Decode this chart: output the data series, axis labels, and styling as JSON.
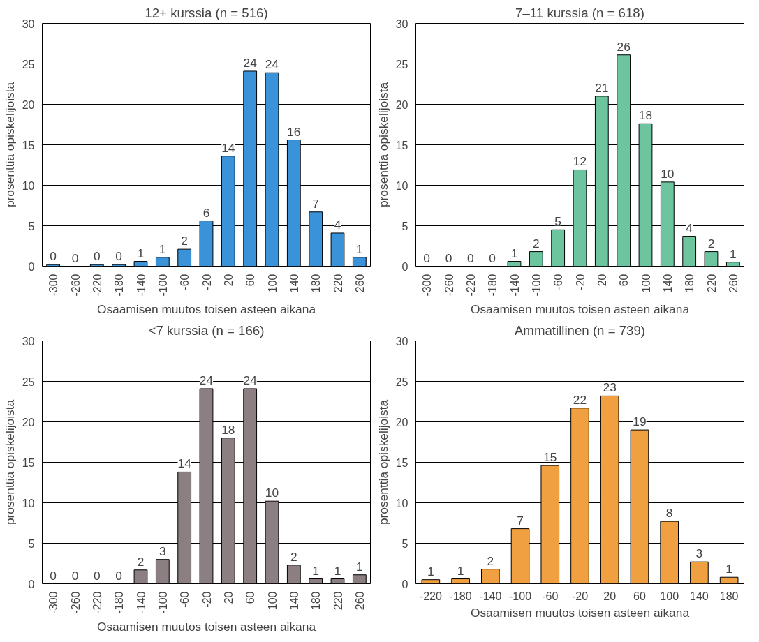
{
  "chart_data": [
    {
      "type": "bar",
      "title": "12+ kurssia (n = 516)",
      "xlabel": "Osaamisen muutos toisen asteen aikana",
      "ylabel": "prosenttia opiskelijoista",
      "categories": [
        "-300",
        "-260",
        "-220",
        "-180",
        "-140",
        "-100",
        "-60",
        "-20",
        "20",
        "60",
        "100",
        "140",
        "180",
        "220",
        "260"
      ],
      "values": [
        0.2,
        0,
        0.2,
        0.2,
        0.6,
        1.1,
        2.1,
        5.6,
        13.6,
        24.1,
        23.9,
        15.6,
        6.7,
        4.1,
        1.1
      ],
      "value_labels": [
        "0",
        "0",
        "0",
        "0",
        "1",
        "1",
        "2",
        "6",
        "14",
        "24",
        "24",
        "16",
        "7",
        "4",
        "1"
      ],
      "color": "#3a93d8",
      "ylim": [
        0,
        30
      ],
      "yticks": [
        0,
        5,
        10,
        15,
        20,
        25,
        30
      ],
      "grid": "y"
    },
    {
      "type": "bar",
      "title": "7–11 kurssia (n = 618)",
      "xlabel": "Osaamisen muutos toisen asteen aikana",
      "ylabel": "prosenttia opiskelijoista",
      "categories": [
        "-300",
        "-260",
        "-220",
        "-180",
        "-140",
        "-100",
        "-60",
        "-20",
        "20",
        "60",
        "100",
        "140",
        "180",
        "220",
        "260"
      ],
      "values": [
        0,
        0,
        0,
        0,
        0.6,
        1.8,
        4.5,
        11.9,
        21,
        26.1,
        17.6,
        10.4,
        3.7,
        1.8,
        0.5
      ],
      "value_labels": [
        "0",
        "0",
        "0",
        "0",
        "1",
        "2",
        "5",
        "12",
        "21",
        "26",
        "18",
        "10",
        "4",
        "2",
        "1"
      ],
      "color": "#6cc59f",
      "ylim": [
        0,
        30
      ],
      "yticks": [
        0,
        5,
        10,
        15,
        20,
        25,
        30
      ],
      "grid": "y"
    },
    {
      "type": "bar",
      "title": "<7 kurssia (n = 166)",
      "xlabel": "Osaamisen muutos toisen asteen aikana",
      "ylabel": "prosenttia opiskelijoista",
      "categories": [
        "-300",
        "-260",
        "-220",
        "-180",
        "-140",
        "-100",
        "-60",
        "-20",
        "20",
        "60",
        "100",
        "140",
        "180",
        "220",
        "260"
      ],
      "values": [
        0,
        0,
        0,
        0,
        1.7,
        3,
        13.8,
        24.1,
        18,
        24.1,
        10.2,
        2.3,
        0.6,
        0.6,
        1.1
      ],
      "value_labels": [
        "0",
        "0",
        "0",
        "0",
        "2",
        "3",
        "14",
        "24",
        "18",
        "24",
        "10",
        "2",
        "1",
        "1",
        "1"
      ],
      "color": "#8c7f82",
      "ylim": [
        0,
        30
      ],
      "yticks": [
        0,
        5,
        10,
        15,
        20,
        25,
        30
      ],
      "grid": "y"
    },
    {
      "type": "bar",
      "title": "Ammatillinen (n = 739)",
      "xlabel": "Osaamisen muutos toisen asteen aikana",
      "ylabel": "prosenttia opiskelijoista",
      "categories": [
        "-220",
        "-180",
        "-140",
        "-100",
        "-60",
        "-20",
        "20",
        "60",
        "100",
        "140",
        "180"
      ],
      "values": [
        0.5,
        0.6,
        1.8,
        6.8,
        14.6,
        21.7,
        23.2,
        19,
        7.7,
        2.7,
        0.8
      ],
      "value_labels": [
        "1",
        "1",
        "2",
        "7",
        "15",
        "22",
        "23",
        "19",
        "8",
        "3",
        "1"
      ],
      "color": "#f0a040",
      "ylim": [
        0,
        30
      ],
      "yticks": [
        0,
        5,
        10,
        15,
        20,
        25,
        30
      ],
      "grid": "y"
    }
  ]
}
